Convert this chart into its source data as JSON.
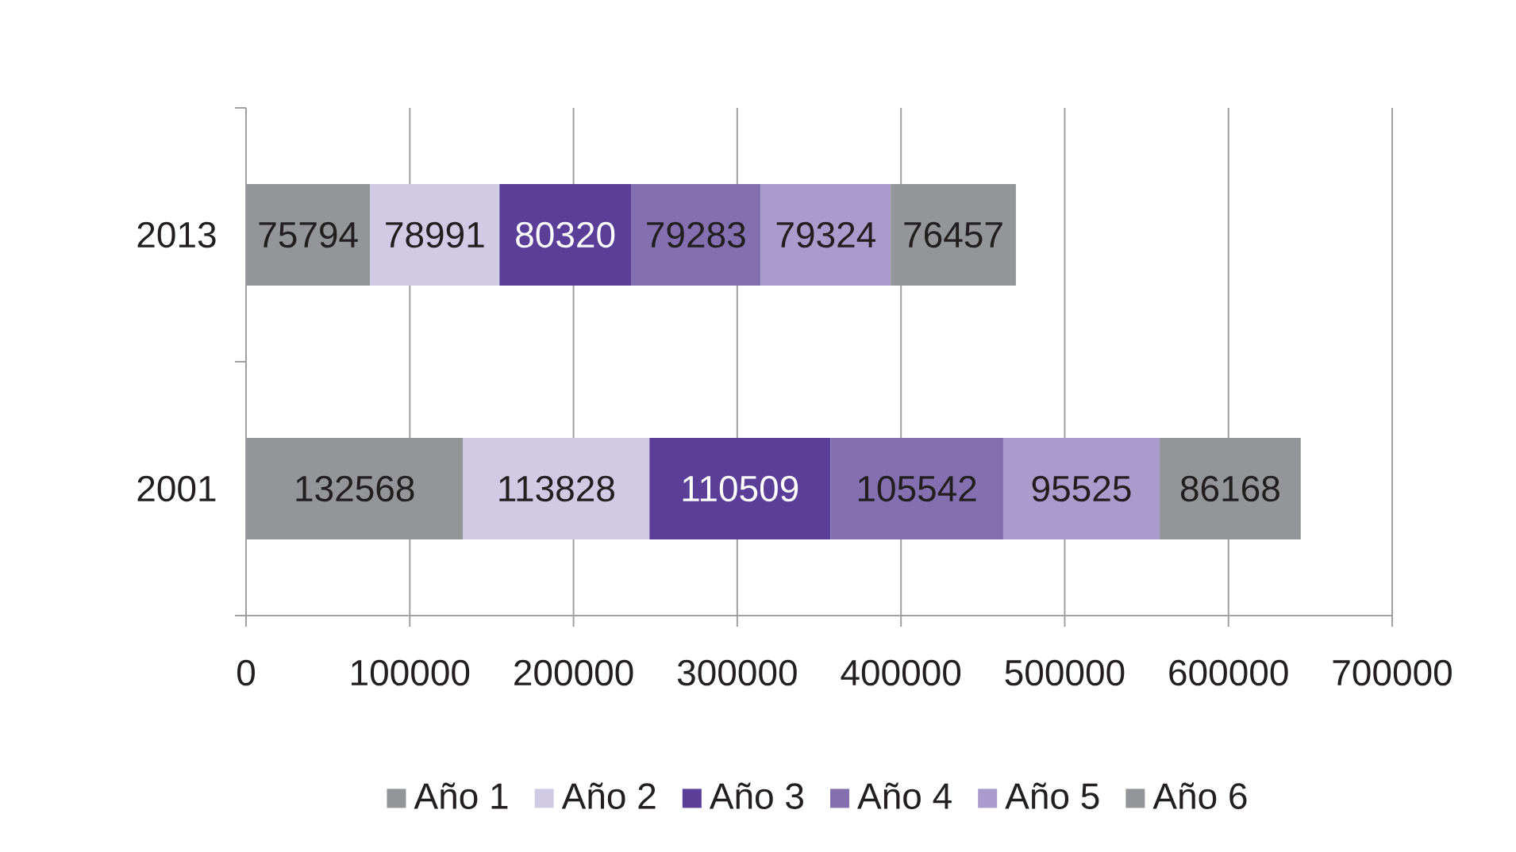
{
  "chart_data": {
    "type": "bar",
    "orientation": "horizontal",
    "stacked": true,
    "categories": [
      "2013",
      "2001"
    ],
    "series": [
      {
        "name": "Año 1",
        "color": "#939598",
        "values": [
          75794,
          132568
        ]
      },
      {
        "name": "Año 2",
        "color": "#d0cae4",
        "values": [
          78991,
          113828
        ]
      },
      {
        "name": "Año 3",
        "color": "#5a3e98",
        "values": [
          80320,
          110509
        ]
      },
      {
        "name": "Año 4",
        "color": "#8470b0",
        "values": [
          79283,
          105542
        ]
      },
      {
        "name": "Año 5",
        "color": "#a99bcc",
        "values": [
          79324,
          95525
        ]
      },
      {
        "name": "Año 6",
        "color": "#939598",
        "values": [
          76457,
          86168
        ]
      }
    ],
    "xlim": [
      0,
      700000
    ],
    "xticks": [
      0,
      100000,
      200000,
      300000,
      400000,
      500000,
      600000,
      700000
    ],
    "grid": "x",
    "legend": "bottom",
    "data_labels": true
  }
}
